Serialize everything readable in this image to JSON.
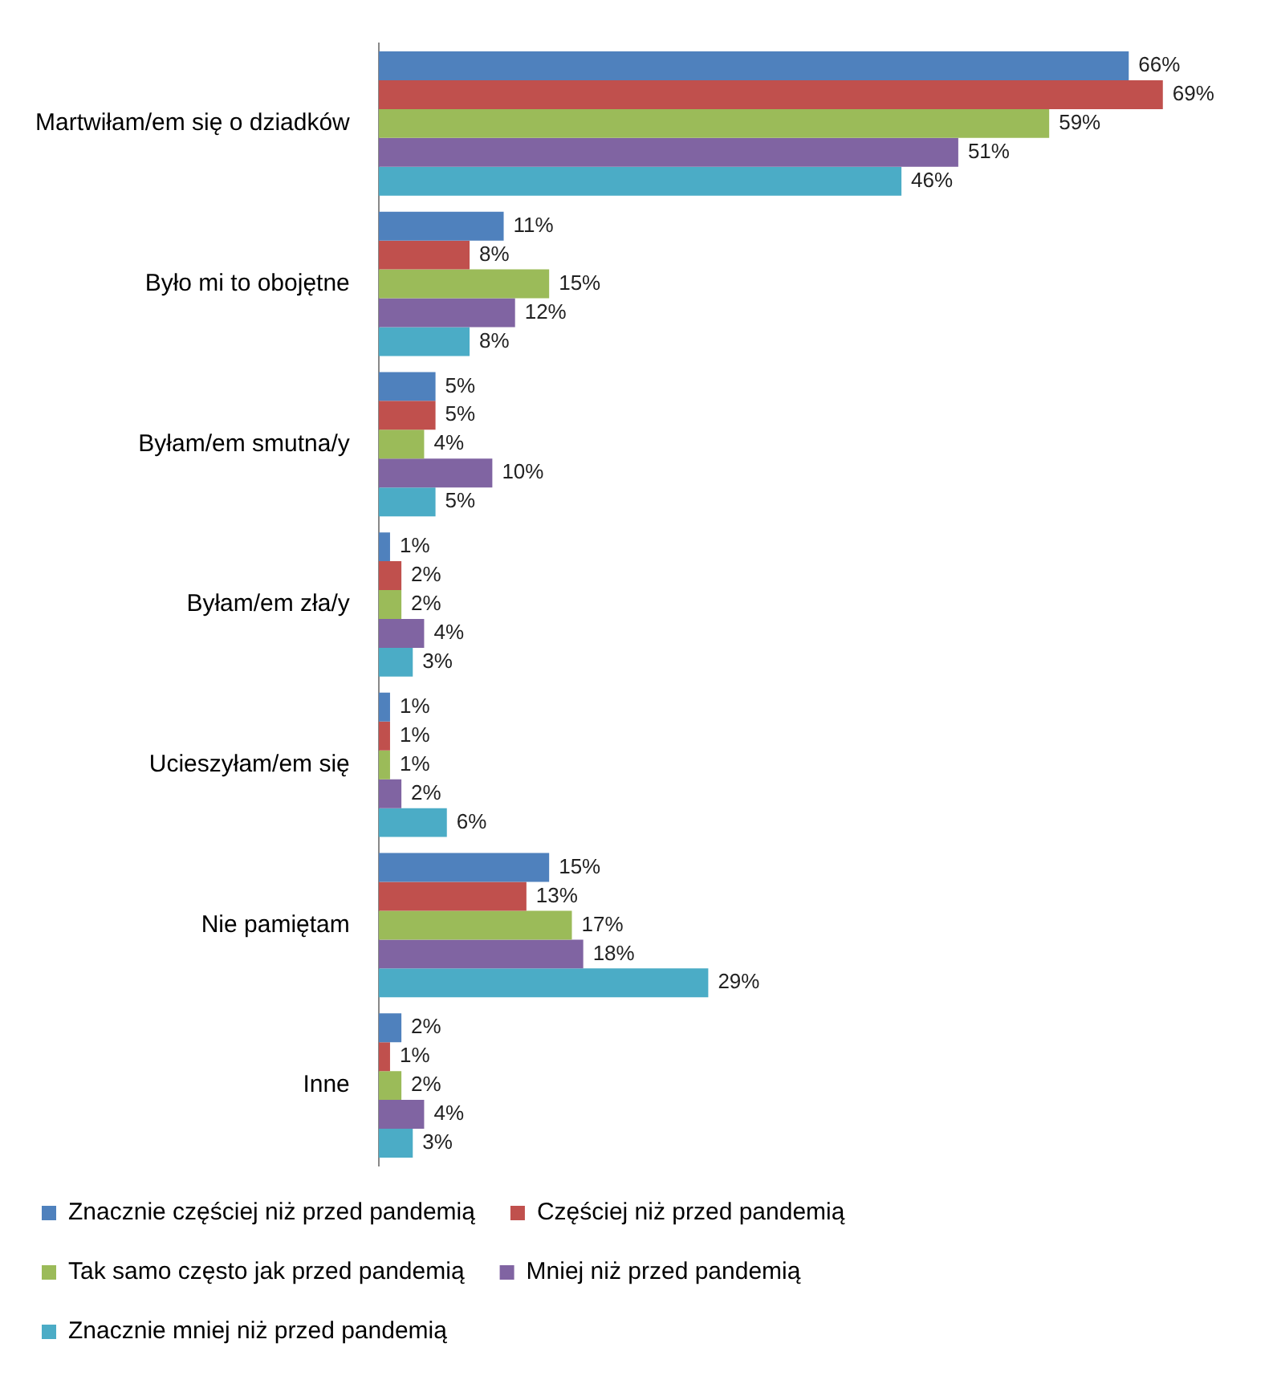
{
  "chart_data": {
    "type": "bar",
    "orientation": "horizontal",
    "categories": [
      "Martwiłam/em się o dziadków",
      "Było mi to obojętne",
      "Byłam/em smutna/y",
      "Byłam/em zła/y",
      "Ucieszyłam/em się",
      "Nie pamiętam",
      "Inne"
    ],
    "series": [
      {
        "name": "Znacznie częściej niż przed pandemią",
        "color": "#4f81bd",
        "values": [
          66,
          11,
          5,
          1,
          1,
          15,
          2
        ],
        "value_labels": [
          "66%",
          "11%",
          "5%",
          "1%",
          "1%",
          "15%",
          "2%"
        ]
      },
      {
        "name": "Częściej niż przed pandemią",
        "color": "#c0504d",
        "values": [
          69,
          8,
          5,
          2,
          1,
          13,
          1
        ],
        "value_labels": [
          "69%",
          "8%",
          "5%",
          "2%",
          "1%",
          "13%",
          "1%"
        ]
      },
      {
        "name": "Tak samo często jak przed pandemią",
        "color": "#9bbb59",
        "values": [
          59,
          15,
          4,
          2,
          1,
          17,
          2
        ],
        "value_labels": [
          "59%",
          "15%",
          "4%",
          "2%",
          "1%",
          "17%",
          "2%"
        ]
      },
      {
        "name": "Mniej niż przed pandemią",
        "color": "#8064a2",
        "values": [
          51,
          12,
          10,
          4,
          2,
          18,
          4
        ],
        "value_labels": [
          "51%",
          "12%",
          "10%",
          "4%",
          "2%",
          "18%",
          "4%"
        ]
      },
      {
        "name": "Znacznie mniej niż przed pandemią",
        "color": "#4bacc6",
        "values": [
          46,
          8,
          5,
          3,
          6,
          29,
          3
        ],
        "value_labels": [
          "46%",
          "8%",
          "5%",
          "3%",
          "6%",
          "29%",
          "3%"
        ]
      }
    ],
    "legend": "bottom"
  }
}
